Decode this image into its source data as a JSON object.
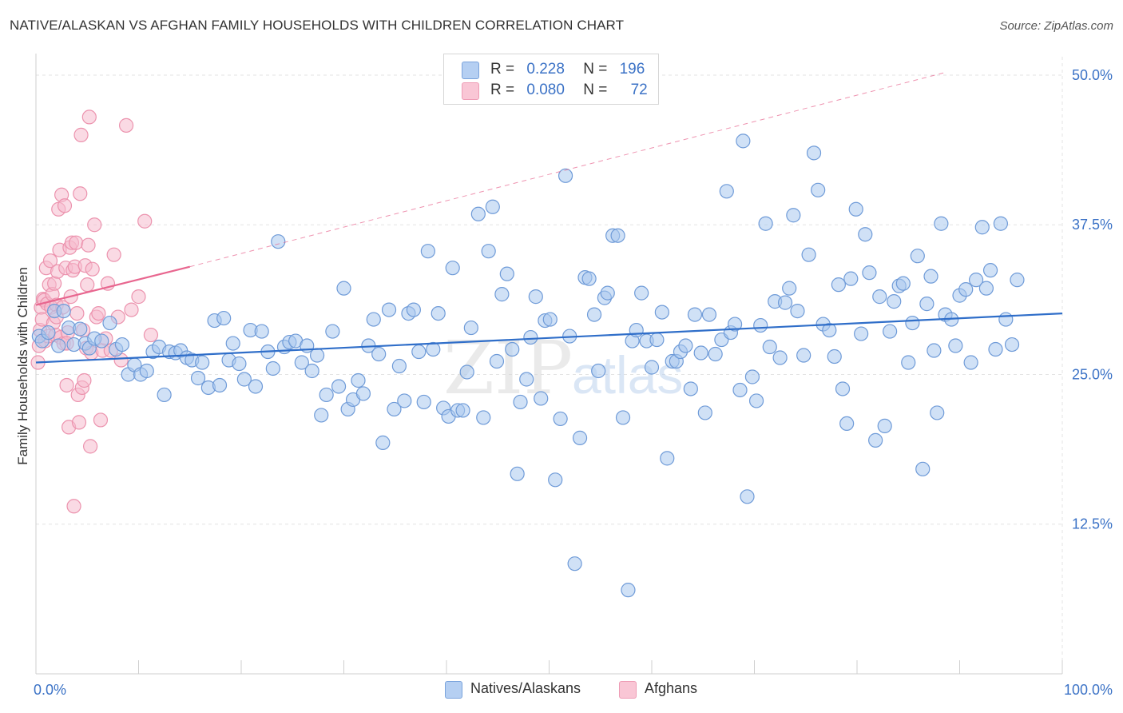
{
  "title": "NATIVE/ALASKAN VS AFGHAN FAMILY HOUSEHOLDS WITH CHILDREN CORRELATION CHART",
  "source": "Source: ZipAtlas.com",
  "watermark": {
    "zip": "ZIP",
    "atlas": "atlas"
  },
  "legend": {
    "rows": [
      {
        "r_label": "R =",
        "r_value": "0.228",
        "n_label": "N =",
        "n_value": "196"
      },
      {
        "r_label": "R =",
        "r_value": "0.080",
        "n_label": "N =",
        "n_value": "72"
      }
    ]
  },
  "colors": {
    "blue_fill": "#a9c8ef",
    "blue_stroke": "#6f9bd8",
    "blue_line": "#2f6ec9",
    "pink_fill": "#f6bccd",
    "pink_stroke": "#ec93ae",
    "pink_line": "#e8668f",
    "tick_text": "#3b72c6",
    "grid": "#e3e3e3"
  },
  "chart_data": {
    "type": "scatter",
    "title": "NATIVE/ALASKAN VS AFGHAN FAMILY HOUSEHOLDS WITH CHILDREN CORRELATION CHART",
    "xlabel": "",
    "ylabel": "Family Households with Children",
    "xlim": [
      0,
      100
    ],
    "ylim": [
      0,
      51
    ],
    "x_tick_labels": [
      "0.0%",
      "100.0%"
    ],
    "y_ticks": [
      12.5,
      25.0,
      37.5,
      50.0
    ],
    "y_tick_labels": [
      "12.5%",
      "25.0%",
      "37.5%",
      "50.0%"
    ],
    "grid": true,
    "legend_position": "bottom-center",
    "series": [
      {
        "name": "Natives/Alaskans",
        "R": 0.228,
        "N": 196,
        "trend": {
          "x": [
            0,
            100
          ],
          "y": [
            26.0,
            30.1
          ]
        },
        "points": [
          [
            0.3,
            28.2
          ],
          [
            0.6,
            27.8
          ],
          [
            1.2,
            28.5
          ],
          [
            1.8,
            30.3
          ],
          [
            2.2,
            27.4
          ],
          [
            2.7,
            30.3
          ],
          [
            3.2,
            28.9
          ],
          [
            3.7,
            27.5
          ],
          [
            4.3,
            28.8
          ],
          [
            4.8,
            27.6
          ],
          [
            5.2,
            27.2
          ],
          [
            5.7,
            28.0
          ],
          [
            6.4,
            27.8
          ],
          [
            7.2,
            29.3
          ],
          [
            7.8,
            27.1
          ],
          [
            8.4,
            27.5
          ],
          [
            9.0,
            25.0
          ],
          [
            9.6,
            25.8
          ],
          [
            10.2,
            25.0
          ],
          [
            10.8,
            25.3
          ],
          [
            11.4,
            26.9
          ],
          [
            12.0,
            27.3
          ],
          [
            12.5,
            23.3
          ],
          [
            13.0,
            26.9
          ],
          [
            13.6,
            26.8
          ],
          [
            14.1,
            27.0
          ],
          [
            14.7,
            26.4
          ],
          [
            15.2,
            26.2
          ],
          [
            15.8,
            24.7
          ],
          [
            16.2,
            26.0
          ],
          [
            16.8,
            23.9
          ],
          [
            17.4,
            29.5
          ],
          [
            17.9,
            24.1
          ],
          [
            18.3,
            29.7
          ],
          [
            18.8,
            26.2
          ],
          [
            19.2,
            27.6
          ],
          [
            19.8,
            25.9
          ],
          [
            20.3,
            24.6
          ],
          [
            20.9,
            28.7
          ],
          [
            21.4,
            24.0
          ],
          [
            22.0,
            28.6
          ],
          [
            22.6,
            26.9
          ],
          [
            23.1,
            25.5
          ],
          [
            23.6,
            36.1
          ],
          [
            24.2,
            27.3
          ],
          [
            24.7,
            27.7
          ],
          [
            25.3,
            27.8
          ],
          [
            25.9,
            26.0
          ],
          [
            26.4,
            27.4
          ],
          [
            26.9,
            25.3
          ],
          [
            27.4,
            26.6
          ],
          [
            27.8,
            21.6
          ],
          [
            28.3,
            23.3
          ],
          [
            28.9,
            28.6
          ],
          [
            29.5,
            24.0
          ],
          [
            30.0,
            32.2
          ],
          [
            30.4,
            22.1
          ],
          [
            30.9,
            22.9
          ],
          [
            31.4,
            24.5
          ],
          [
            31.9,
            23.4
          ],
          [
            32.4,
            27.4
          ],
          [
            32.9,
            29.6
          ],
          [
            33.4,
            26.7
          ],
          [
            33.8,
            19.3
          ],
          [
            34.4,
            30.4
          ],
          [
            34.9,
            22.1
          ],
          [
            35.4,
            25.7
          ],
          [
            35.9,
            22.8
          ],
          [
            36.3,
            30.1
          ],
          [
            36.8,
            30.4
          ],
          [
            37.3,
            26.9
          ],
          [
            37.8,
            22.7
          ],
          [
            38.2,
            35.3
          ],
          [
            38.7,
            27.1
          ],
          [
            39.2,
            30.1
          ],
          [
            39.7,
            22.2
          ],
          [
            40.2,
            21.5
          ],
          [
            40.6,
            33.9
          ],
          [
            41.1,
            22.0
          ],
          [
            41.6,
            22.0
          ],
          [
            42.0,
            25.2
          ],
          [
            42.4,
            28.9
          ],
          [
            43.1,
            38.4
          ],
          [
            43.6,
            21.4
          ],
          [
            44.1,
            35.3
          ],
          [
            44.5,
            39.0
          ],
          [
            44.9,
            26.1
          ],
          [
            45.4,
            31.7
          ],
          [
            45.9,
            33.4
          ],
          [
            46.4,
            27.1
          ],
          [
            46.9,
            16.7
          ],
          [
            47.2,
            22.7
          ],
          [
            47.8,
            24.6
          ],
          [
            48.2,
            28.1
          ],
          [
            48.7,
            31.5
          ],
          [
            49.2,
            23.0
          ],
          [
            49.6,
            29.5
          ],
          [
            50.1,
            29.6
          ],
          [
            50.6,
            16.2
          ],
          [
            51.1,
            21.3
          ],
          [
            51.6,
            41.6
          ],
          [
            52.0,
            28.2
          ],
          [
            52.5,
            9.2
          ],
          [
            53.0,
            19.7
          ],
          [
            53.5,
            33.1
          ],
          [
            53.9,
            33.0
          ],
          [
            54.4,
            30.0
          ],
          [
            54.8,
            25.3
          ],
          [
            55.4,
            31.4
          ],
          [
            55.7,
            31.8
          ],
          [
            56.2,
            36.6
          ],
          [
            56.7,
            36.6
          ],
          [
            57.2,
            21.4
          ],
          [
            57.7,
            7.0
          ],
          [
            58.1,
            27.8
          ],
          [
            58.5,
            28.7
          ],
          [
            59.0,
            31.8
          ],
          [
            59.5,
            27.8
          ],
          [
            60.0,
            25.6
          ],
          [
            60.5,
            27.9
          ],
          [
            61.0,
            30.2
          ],
          [
            61.5,
            18.0
          ],
          [
            62.0,
            26.1
          ],
          [
            62.4,
            26.1
          ],
          [
            62.8,
            26.9
          ],
          [
            63.3,
            27.4
          ],
          [
            63.8,
            23.8
          ],
          [
            64.2,
            30.0
          ],
          [
            64.8,
            26.8
          ],
          [
            65.2,
            21.8
          ],
          [
            65.6,
            30.0
          ],
          [
            66.2,
            26.7
          ],
          [
            66.8,
            27.9
          ],
          [
            67.3,
            40.3
          ],
          [
            67.7,
            28.5
          ],
          [
            68.1,
            29.2
          ],
          [
            68.6,
            23.7
          ],
          [
            68.9,
            44.5
          ],
          [
            69.3,
            14.8
          ],
          [
            69.8,
            24.8
          ],
          [
            70.2,
            22.8
          ],
          [
            70.6,
            29.1
          ],
          [
            71.1,
            37.6
          ],
          [
            71.5,
            27.3
          ],
          [
            72.0,
            31.1
          ],
          [
            72.5,
            26.4
          ],
          [
            73.0,
            31.0
          ],
          [
            73.4,
            32.2
          ],
          [
            73.8,
            38.3
          ],
          [
            74.2,
            30.3
          ],
          [
            74.8,
            26.6
          ],
          [
            75.3,
            35.0
          ],
          [
            75.8,
            43.5
          ],
          [
            76.2,
            40.4
          ],
          [
            76.7,
            29.2
          ],
          [
            77.3,
            28.7
          ],
          [
            77.8,
            26.5
          ],
          [
            78.2,
            32.5
          ],
          [
            78.6,
            23.8
          ],
          [
            79.0,
            20.9
          ],
          [
            79.4,
            33.0
          ],
          [
            79.9,
            38.8
          ],
          [
            80.4,
            28.4
          ],
          [
            80.8,
            36.7
          ],
          [
            81.2,
            33.5
          ],
          [
            81.8,
            19.5
          ],
          [
            82.2,
            31.5
          ],
          [
            82.7,
            20.7
          ],
          [
            83.2,
            28.6
          ],
          [
            83.6,
            31.1
          ],
          [
            84.1,
            32.4
          ],
          [
            84.5,
            32.6
          ],
          [
            85.0,
            26.0
          ],
          [
            85.4,
            29.3
          ],
          [
            85.9,
            34.9
          ],
          [
            86.4,
            17.1
          ],
          [
            86.8,
            30.9
          ],
          [
            87.2,
            33.2
          ],
          [
            87.5,
            27.0
          ],
          [
            87.8,
            21.8
          ],
          [
            88.2,
            37.6
          ],
          [
            88.6,
            30.0
          ],
          [
            89.2,
            29.6
          ],
          [
            89.6,
            27.4
          ],
          [
            90.0,
            31.6
          ],
          [
            90.6,
            32.1
          ],
          [
            91.1,
            26.0
          ],
          [
            91.6,
            32.9
          ],
          [
            92.2,
            37.3
          ],
          [
            92.6,
            32.2
          ],
          [
            93.0,
            33.7
          ],
          [
            93.5,
            27.1
          ],
          [
            94.0,
            37.6
          ],
          [
            94.5,
            29.6
          ],
          [
            95.1,
            27.5
          ],
          [
            95.6,
            32.9
          ]
        ]
      },
      {
        "name": "Afghans",
        "R": 0.08,
        "N": 72,
        "trend": {
          "x": [
            0,
            15
          ],
          "y": [
            30.8,
            34.0
          ],
          "dashed_extension": {
            "x": [
              15,
              88.5
            ],
            "y": [
              34.0,
              50.2
            ]
          }
        },
        "points": [
          [
            0.2,
            26.0
          ],
          [
            0.3,
            27.4
          ],
          [
            0.4,
            28.7
          ],
          [
            0.5,
            30.6
          ],
          [
            0.6,
            29.6
          ],
          [
            0.7,
            31.3
          ],
          [
            0.8,
            31.2
          ],
          [
            0.9,
            27.8
          ],
          [
            1.0,
            33.9
          ],
          [
            1.1,
            30.9
          ],
          [
            1.2,
            28.2
          ],
          [
            1.3,
            32.5
          ],
          [
            1.4,
            34.5
          ],
          [
            1.5,
            30.6
          ],
          [
            1.6,
            31.7
          ],
          [
            1.7,
            29.3
          ],
          [
            1.8,
            32.6
          ],
          [
            1.9,
            28.3
          ],
          [
            2.0,
            30.8
          ],
          [
            2.1,
            33.6
          ],
          [
            2.2,
            38.8
          ],
          [
            2.3,
            35.4
          ],
          [
            2.4,
            28.1
          ],
          [
            2.5,
            40.0
          ],
          [
            2.6,
            30.6
          ],
          [
            2.7,
            27.6
          ],
          [
            2.8,
            39.1
          ],
          [
            2.9,
            33.9
          ],
          [
            3.0,
            24.1
          ],
          [
            3.1,
            28.5
          ],
          [
            3.2,
            20.6
          ],
          [
            3.3,
            35.6
          ],
          [
            3.4,
            31.5
          ],
          [
            3.5,
            36.0
          ],
          [
            3.6,
            33.7
          ],
          [
            3.7,
            14.0
          ],
          [
            3.8,
            34.0
          ],
          [
            3.9,
            36.0
          ],
          [
            4.0,
            30.1
          ],
          [
            4.1,
            23.3
          ],
          [
            4.2,
            21.0
          ],
          [
            4.3,
            40.1
          ],
          [
            4.4,
            45.0
          ],
          [
            4.5,
            23.9
          ],
          [
            4.6,
            28.7
          ],
          [
            4.7,
            24.5
          ],
          [
            4.8,
            34.1
          ],
          [
            4.9,
            27.2
          ],
          [
            5.0,
            32.5
          ],
          [
            5.1,
            35.8
          ],
          [
            5.2,
            46.5
          ],
          [
            5.3,
            19.0
          ],
          [
            5.4,
            26.8
          ],
          [
            5.5,
            33.8
          ],
          [
            5.7,
            37.5
          ],
          [
            5.9,
            29.8
          ],
          [
            6.1,
            30.1
          ],
          [
            6.3,
            21.2
          ],
          [
            6.5,
            27.0
          ],
          [
            6.8,
            28.0
          ],
          [
            7.0,
            32.6
          ],
          [
            7.3,
            27.0
          ],
          [
            7.6,
            35.0
          ],
          [
            8.0,
            29.8
          ],
          [
            8.3,
            26.2
          ],
          [
            8.8,
            45.8
          ],
          [
            9.3,
            30.4
          ],
          [
            10.0,
            31.5
          ],
          [
            10.6,
            37.8
          ],
          [
            11.2,
            28.3
          ],
          [
            2.0,
            29.8
          ],
          [
            3.0,
            27.6
          ]
        ]
      }
    ]
  },
  "bottom_legend": [
    {
      "label": "Natives/Alaskans"
    },
    {
      "label": "Afghans"
    }
  ]
}
